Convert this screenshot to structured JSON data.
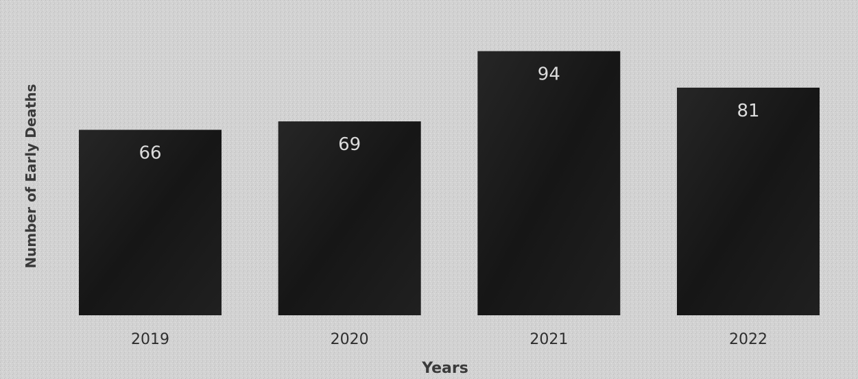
{
  "chart_data": {
    "type": "bar",
    "title": "",
    "xlabel": "Years",
    "ylabel": "Number of Early Deaths",
    "categories": [
      "2019",
      "2020",
      "2021",
      "2022"
    ],
    "values": [
      66,
      69,
      94,
      81
    ],
    "ylim": [
      0,
      100
    ],
    "grid": false,
    "legend": "none",
    "colors": {
      "bar": "#1c1c1c",
      "background": "#d2d2d2",
      "label": "#dcdcdc"
    }
  }
}
